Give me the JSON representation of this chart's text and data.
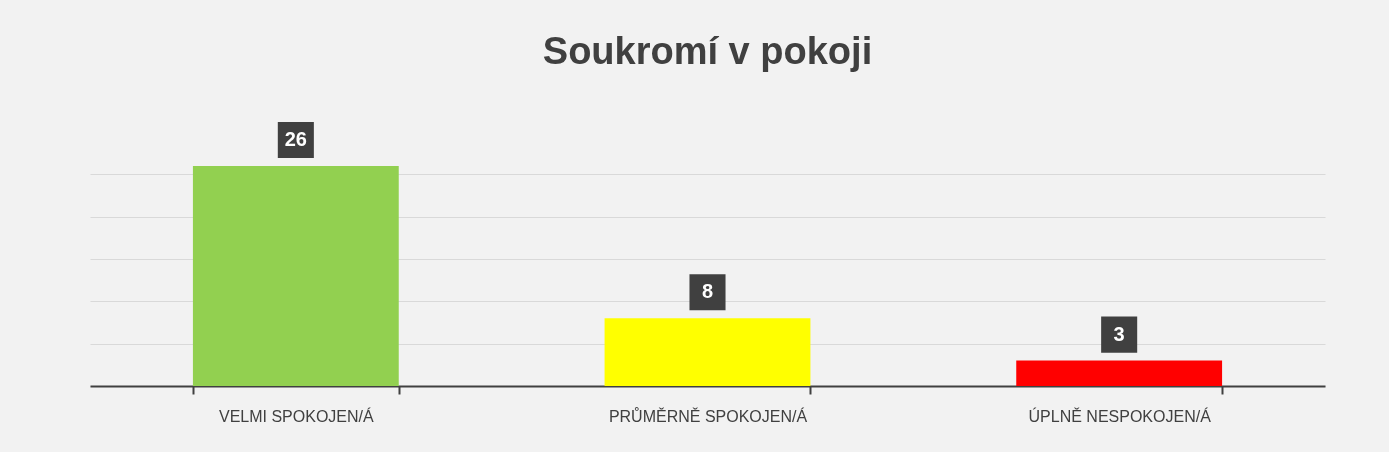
{
  "chart_data": {
    "type": "bar",
    "title": "Soukromí v pokoji",
    "categories": [
      "VELMI SPOKOJEN/Á",
      "PRŮMĚRNĚ SPOKOJEN/Á",
      "ÚPLNĚ NESPOKOJEN/Á"
    ],
    "values": [
      26,
      8,
      3
    ],
    "colors": [
      "#92d050",
      "#ffff00",
      "#ff0000"
    ],
    "grid": "y",
    "tick_labels": "x",
    "data_labels": true
  }
}
